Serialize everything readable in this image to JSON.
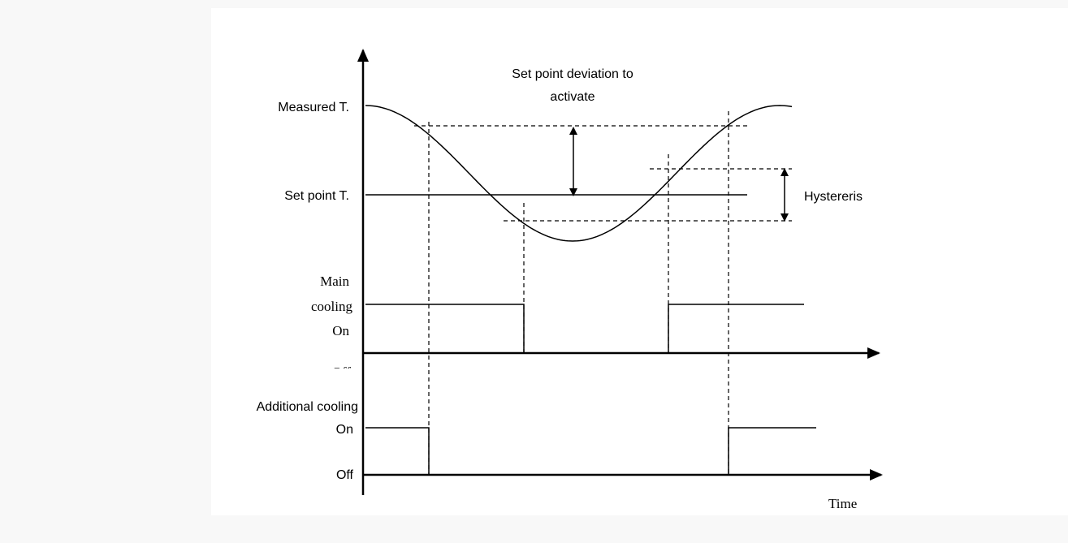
{
  "diagram": {
    "deviation_label": [
      "Set point deviation to",
      "activate"
    ],
    "measured_label": "Measured T.",
    "setpoint_label": "Set point T.",
    "hysteresis_label": "Hystereris",
    "main_label": [
      "Main",
      "cooling",
      "On"
    ],
    "main_off_label": "Off",
    "additional_label": "Additional cooling",
    "additional_on_label": "On",
    "additional_off_label": "Off",
    "time_label": "Time"
  }
}
